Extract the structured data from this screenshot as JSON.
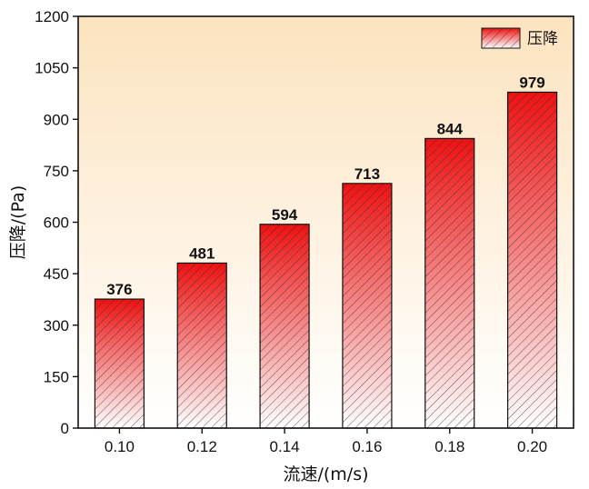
{
  "chart_data": {
    "type": "bar",
    "categories": [
      "0.10",
      "0.12",
      "0.14",
      "0.16",
      "0.18",
      "0.20"
    ],
    "series": [
      {
        "name": "压降",
        "values": [
          376,
          481,
          594,
          713,
          844,
          979
        ]
      }
    ],
    "data_labels": [
      "376",
      "481",
      "594",
      "713",
      "844",
      "979"
    ],
    "title": "",
    "xlabel": "流速/(m/s)",
    "ylabel": "压降/(Pa)",
    "ylim": [
      0,
      1200
    ],
    "yticks": [
      "0",
      "150",
      "300",
      "450",
      "600",
      "750",
      "900",
      "1050",
      "1200"
    ],
    "grid": false,
    "legend_position": "top-right",
    "bar_fill": "red-to-white vertical gradient with diagonal hatching",
    "colors": {
      "bar_top": "#ee1111",
      "bar_bottom": "#ffffff",
      "plot_background_top": "#fce3bf",
      "plot_background_bottom": "#ffffff",
      "axis": "#111111"
    }
  }
}
